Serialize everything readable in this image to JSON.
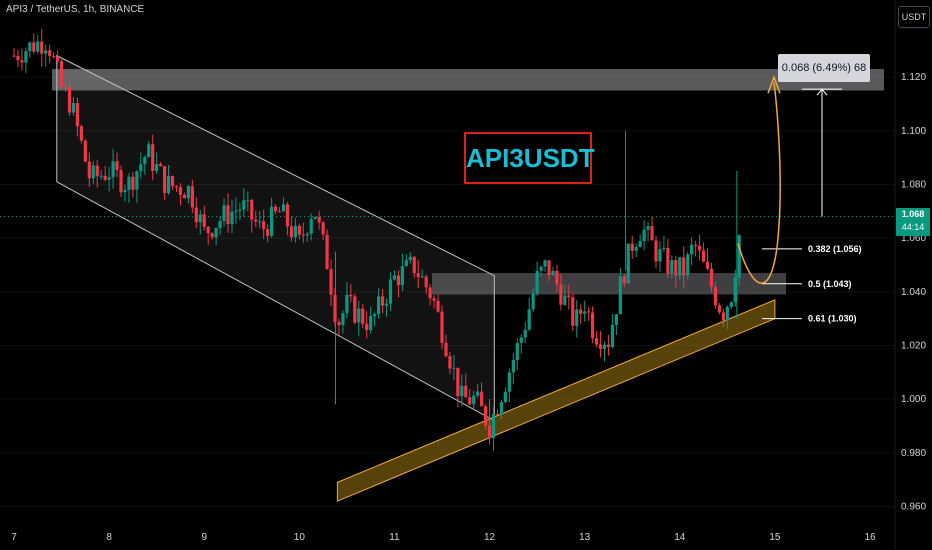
{
  "header": {
    "symbol_line": "API3 / TetherUS, 1h, BINANCE"
  },
  "currency_button": "USDT",
  "last_price": {
    "value": "1.068",
    "countdown": "44:14"
  },
  "title": "API3USDT",
  "measure_label": "0.068 (6.49%) 68",
  "fib_levels": [
    {
      "label": "0.382 (1.056)",
      "price": 1.056
    },
    {
      "label": "0.5 (1.043)",
      "price": 1.043
    },
    {
      "label": "0.61 (1.030)",
      "price": 1.03
    }
  ],
  "colors": {
    "up": "#089981",
    "down": "#f23645",
    "accent": "#f2a93b",
    "title": "#17bed3",
    "title_border": "#e0201b"
  },
  "chart_data": {
    "type": "candlestick",
    "ylim": [
      0.952,
      1.145
    ],
    "xlim": [
      7.0,
      16.0
    ],
    "y_ticks": [
      "1.120",
      "1.100",
      "1.080",
      "1.060",
      "1.040",
      "1.020",
      "1.000",
      "0.980",
      "0.960"
    ],
    "x_ticks": [
      "7",
      "8",
      "9",
      "10",
      "11",
      "12",
      "13",
      "14",
      "15",
      "16"
    ],
    "anchors": [
      [
        7.0,
        1.128
      ],
      [
        7.2,
        1.132
      ],
      [
        7.35,
        1.134
      ],
      [
        7.5,
        1.116
      ],
      [
        7.6,
        1.11
      ],
      [
        7.8,
        1.082
      ],
      [
        8.0,
        1.085
      ],
      [
        8.2,
        1.08
      ],
      [
        8.4,
        1.092
      ],
      [
        8.6,
        1.08
      ],
      [
        8.85,
        1.078
      ],
      [
        9.0,
        1.062
      ],
      [
        9.2,
        1.068
      ],
      [
        9.4,
        1.072
      ],
      [
        9.6,
        1.063
      ],
      [
        9.8,
        1.07
      ],
      [
        10.0,
        1.058
      ],
      [
        10.15,
        1.072
      ],
      [
        10.3,
        1.05
      ],
      [
        10.4,
        1.028
      ],
      [
        10.5,
        1.035
      ],
      [
        10.75,
        1.028
      ],
      [
        11.0,
        1.045
      ],
      [
        11.2,
        1.05
      ],
      [
        11.4,
        1.038
      ],
      [
        11.55,
        1.02
      ],
      [
        11.7,
        1.0
      ],
      [
        11.85,
        1.0
      ],
      [
        12.0,
        0.99
      ],
      [
        12.2,
        1.01
      ],
      [
        12.35,
        1.025
      ],
      [
        12.5,
        1.045
      ],
      [
        12.6,
        1.05
      ],
      [
        12.75,
        1.04
      ],
      [
        12.9,
        1.028
      ],
      [
        13.0,
        1.036
      ],
      [
        13.1,
        1.025
      ],
      [
        13.25,
        1.022
      ],
      [
        13.4,
        1.046
      ],
      [
        13.5,
        1.058
      ],
      [
        13.6,
        1.064
      ],
      [
        13.75,
        1.055
      ],
      [
        13.9,
        1.049
      ],
      [
        14.05,
        1.048
      ],
      [
        14.15,
        1.058
      ],
      [
        14.3,
        1.045
      ],
      [
        14.45,
        1.032
      ],
      [
        14.55,
        1.04
      ],
      [
        14.65,
        1.068
      ]
    ],
    "resistance_zone": [
      1.115,
      1.123
    ],
    "mid_zone_price": 1.043,
    "channel": {
      "upper": [
        [
          7.45,
          1.128
        ],
        [
          12.05,
          1.046
        ]
      ],
      "lower": [
        [
          7.45,
          1.081
        ],
        [
          12.05,
          0.992
        ]
      ]
    },
    "support_channel": {
      "upper": [
        [
          10.4,
          0.969
        ],
        [
          15.0,
          1.037
        ]
      ],
      "lower": [
        [
          10.4,
          0.962
        ],
        [
          15.0,
          1.03
        ]
      ]
    }
  }
}
